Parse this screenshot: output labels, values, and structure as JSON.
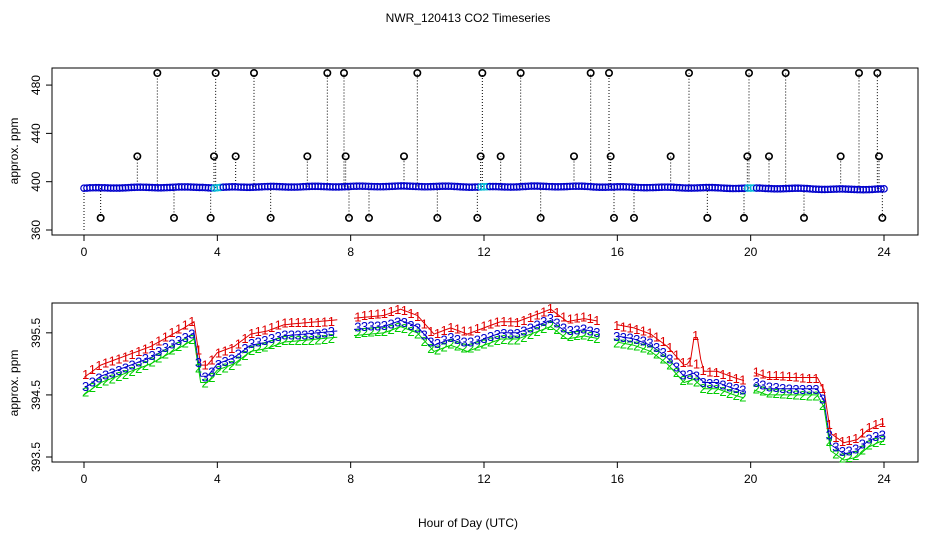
{
  "title": "NWR_120413  CO2 Timeseries",
  "xlabel": "Hour of Day (UTC)",
  "colors": {
    "outlier": "#000000",
    "main_series": "#0000cc",
    "main_series_alt": "#00bcd4",
    "series_1": "#e00000",
    "series_2": "#00cc00",
    "series_3": "#0000cc",
    "axis": "#000000"
  },
  "chart_data": [
    {
      "type": "scatter",
      "name": "top-panel",
      "ylabel": "approx. ppm",
      "xlim": [
        0,
        24
      ],
      "ylim": [
        360,
        490
      ],
      "xticks": [
        0,
        4,
        8,
        12,
        16,
        20,
        24
      ],
      "yticks": [
        360,
        400,
        440,
        480
      ],
      "baseline": [
        [
          0.0,
          394.6
        ],
        [
          1.0,
          395.0
        ],
        [
          2.0,
          395.2
        ],
        [
          3.0,
          395.4
        ],
        [
          3.6,
          395.5
        ],
        [
          3.9,
          394.8
        ],
        [
          4.5,
          395.6
        ],
        [
          6.0,
          395.8
        ],
        [
          8.0,
          396.0
        ],
        [
          9.5,
          396.2
        ],
        [
          11.0,
          396.0
        ],
        [
          12.0,
          395.6
        ],
        [
          13.5,
          396.1
        ],
        [
          15.0,
          396.0
        ],
        [
          16.0,
          395.5
        ],
        [
          17.5,
          395.2
        ],
        [
          18.2,
          395.0
        ],
        [
          19.0,
          394.8
        ],
        [
          20.0,
          394.5
        ],
        [
          21.5,
          394.3
        ],
        [
          22.3,
          393.8
        ],
        [
          23.0,
          393.6
        ],
        [
          23.8,
          393.8
        ]
      ],
      "outliers": [
        {
          "x": 0.5,
          "y": 370
        },
        {
          "x": 1.6,
          "y": 421
        },
        {
          "x": 2.2,
          "y": 490
        },
        {
          "x": 2.7,
          "y": 370
        },
        {
          "x": 3.8,
          "y": 370
        },
        {
          "x": 3.9,
          "y": 421
        },
        {
          "x": 3.95,
          "y": 490
        },
        {
          "x": 4.55,
          "y": 421
        },
        {
          "x": 5.1,
          "y": 490
        },
        {
          "x": 5.6,
          "y": 370
        },
        {
          "x": 6.7,
          "y": 421
        },
        {
          "x": 7.3,
          "y": 490
        },
        {
          "x": 7.8,
          "y": 490
        },
        {
          "x": 7.85,
          "y": 421
        },
        {
          "x": 7.95,
          "y": 370
        },
        {
          "x": 8.55,
          "y": 370
        },
        {
          "x": 9.6,
          "y": 421
        },
        {
          "x": 10.0,
          "y": 490
        },
        {
          "x": 10.6,
          "y": 370
        },
        {
          "x": 11.8,
          "y": 370
        },
        {
          "x": 11.9,
          "y": 421
        },
        {
          "x": 11.95,
          "y": 490
        },
        {
          "x": 12.5,
          "y": 421
        },
        {
          "x": 13.1,
          "y": 490
        },
        {
          "x": 13.7,
          "y": 370
        },
        {
          "x": 14.7,
          "y": 421
        },
        {
          "x": 15.2,
          "y": 490
        },
        {
          "x": 15.75,
          "y": 490
        },
        {
          "x": 15.8,
          "y": 421
        },
        {
          "x": 15.9,
          "y": 370
        },
        {
          "x": 16.5,
          "y": 370
        },
        {
          "x": 17.6,
          "y": 421
        },
        {
          "x": 18.15,
          "y": 490
        },
        {
          "x": 18.7,
          "y": 370
        },
        {
          "x": 19.8,
          "y": 370
        },
        {
          "x": 19.9,
          "y": 421
        },
        {
          "x": 19.95,
          "y": 490
        },
        {
          "x": 20.55,
          "y": 421
        },
        {
          "x": 21.05,
          "y": 490
        },
        {
          "x": 21.6,
          "y": 370
        },
        {
          "x": 22.7,
          "y": 421
        },
        {
          "x": 23.25,
          "y": 490
        },
        {
          "x": 23.8,
          "y": 490
        },
        {
          "x": 23.85,
          "y": 421
        },
        {
          "x": 23.95,
          "y": 370
        }
      ]
    },
    {
      "type": "scatter",
      "name": "bottom-panel",
      "ylabel": "approx. ppm",
      "xlim": [
        0,
        24
      ],
      "ylim": [
        393.5,
        395.9
      ],
      "xticks": [
        0,
        4,
        8,
        12,
        16,
        20,
        24
      ],
      "yticks": [
        393.5,
        394.5,
        395.5
      ],
      "series": [
        {
          "name": "1",
          "marker": "1",
          "offset": 0.18
        },
        {
          "name": "3",
          "marker": "3",
          "offset": 0.0
        },
        {
          "name": "2",
          "marker": "2",
          "offset": -0.1
        }
      ],
      "center": [
        [
          0.0,
          394.6
        ],
        [
          0.5,
          394.8
        ],
        [
          1.0,
          394.9
        ],
        [
          1.5,
          395.0
        ],
        [
          2.0,
          395.1
        ],
        [
          2.5,
          395.25
        ],
        [
          3.0,
          395.4
        ],
        [
          3.3,
          395.5
        ],
        [
          3.5,
          394.8
        ],
        [
          3.7,
          394.8
        ],
        [
          4.0,
          395.0
        ],
        [
          4.5,
          395.1
        ],
        [
          5.0,
          395.3
        ],
        [
          5.5,
          395.35
        ],
        [
          6.0,
          395.45
        ],
        [
          7.0,
          395.5
        ],
        [
          8.0,
          395.55
        ],
        [
          9.0,
          395.6
        ],
        [
          9.5,
          395.7
        ],
        [
          10.0,
          395.6
        ],
        [
          10.5,
          395.3
        ],
        [
          11.0,
          395.4
        ],
        [
          11.5,
          395.3
        ],
        [
          12.0,
          395.4
        ],
        [
          12.5,
          395.5
        ],
        [
          13.0,
          395.5
        ],
        [
          13.5,
          395.6
        ],
        [
          14.0,
          395.7
        ],
        [
          14.5,
          395.5
        ],
        [
          15.0,
          395.55
        ],
        [
          15.5,
          395.5
        ],
        [
          16.0,
          395.45
        ],
        [
          16.5,
          395.4
        ],
        [
          17.0,
          395.3
        ],
        [
          17.5,
          395.1
        ],
        [
          18.0,
          394.8
        ],
        [
          18.3,
          394.85
        ],
        [
          18.6,
          394.7
        ],
        [
          19.0,
          394.7
        ],
        [
          19.5,
          394.6
        ],
        [
          19.8,
          394.55
        ],
        [
          20.0,
          394.7
        ],
        [
          20.5,
          394.6
        ],
        [
          21.0,
          394.6
        ],
        [
          21.5,
          394.6
        ],
        [
          22.0,
          394.6
        ],
        [
          22.2,
          394.4
        ],
        [
          22.4,
          393.7
        ],
        [
          22.8,
          393.55
        ],
        [
          23.2,
          393.6
        ],
        [
          23.5,
          393.75
        ],
        [
          23.9,
          393.85
        ]
      ],
      "spike": {
        "x": 18.35,
        "y": 395.45
      },
      "gaps": [
        [
          7.6,
          8.05
        ],
        [
          15.45,
          15.95
        ],
        [
          19.85,
          20.05
        ]
      ]
    }
  ]
}
